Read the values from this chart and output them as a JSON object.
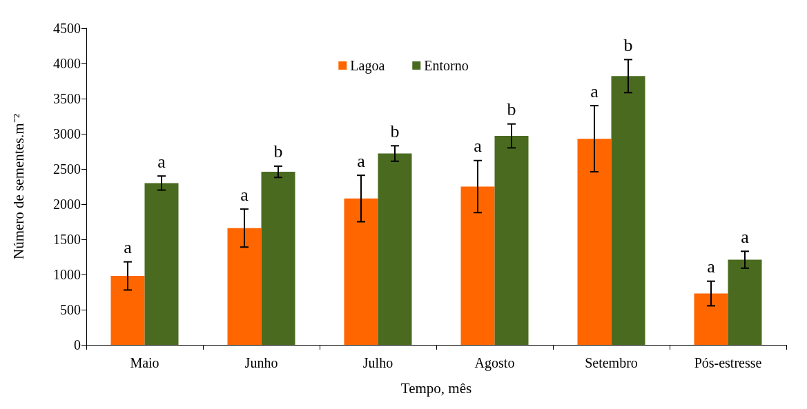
{
  "chart_data": {
    "type": "bar",
    "xlabel": "Tempo, mês",
    "ylabel": "Número de sementes.m⁻²",
    "categories": [
      "Maio",
      "Junho",
      "Julho",
      "Agosto",
      "Setembro",
      "Pós-estresse"
    ],
    "series": [
      {
        "name": "Lagoa",
        "color": "#ff6600",
        "values": [
          980,
          1660,
          2080,
          2250,
          2930,
          730
        ],
        "errors": [
          200,
          270,
          330,
          370,
          470,
          175
        ],
        "value_labels": [
          "a",
          "a",
          "a",
          "a",
          "a",
          "a"
        ]
      },
      {
        "name": "Entorno",
        "color": "#4a6b1f",
        "values": [
          2300,
          2460,
          2720,
          2970,
          3820,
          1210
        ],
        "errors": [
          100,
          80,
          110,
          170,
          235,
          120
        ],
        "value_labels": [
          "a",
          "b",
          "b",
          "b",
          "b",
          "a"
        ]
      }
    ],
    "ylim": [
      0,
      4500
    ],
    "yticks": [
      0,
      500,
      1000,
      1500,
      2000,
      2500,
      3000,
      3500,
      4000,
      4500
    ],
    "grid": false,
    "legend": "top"
  }
}
